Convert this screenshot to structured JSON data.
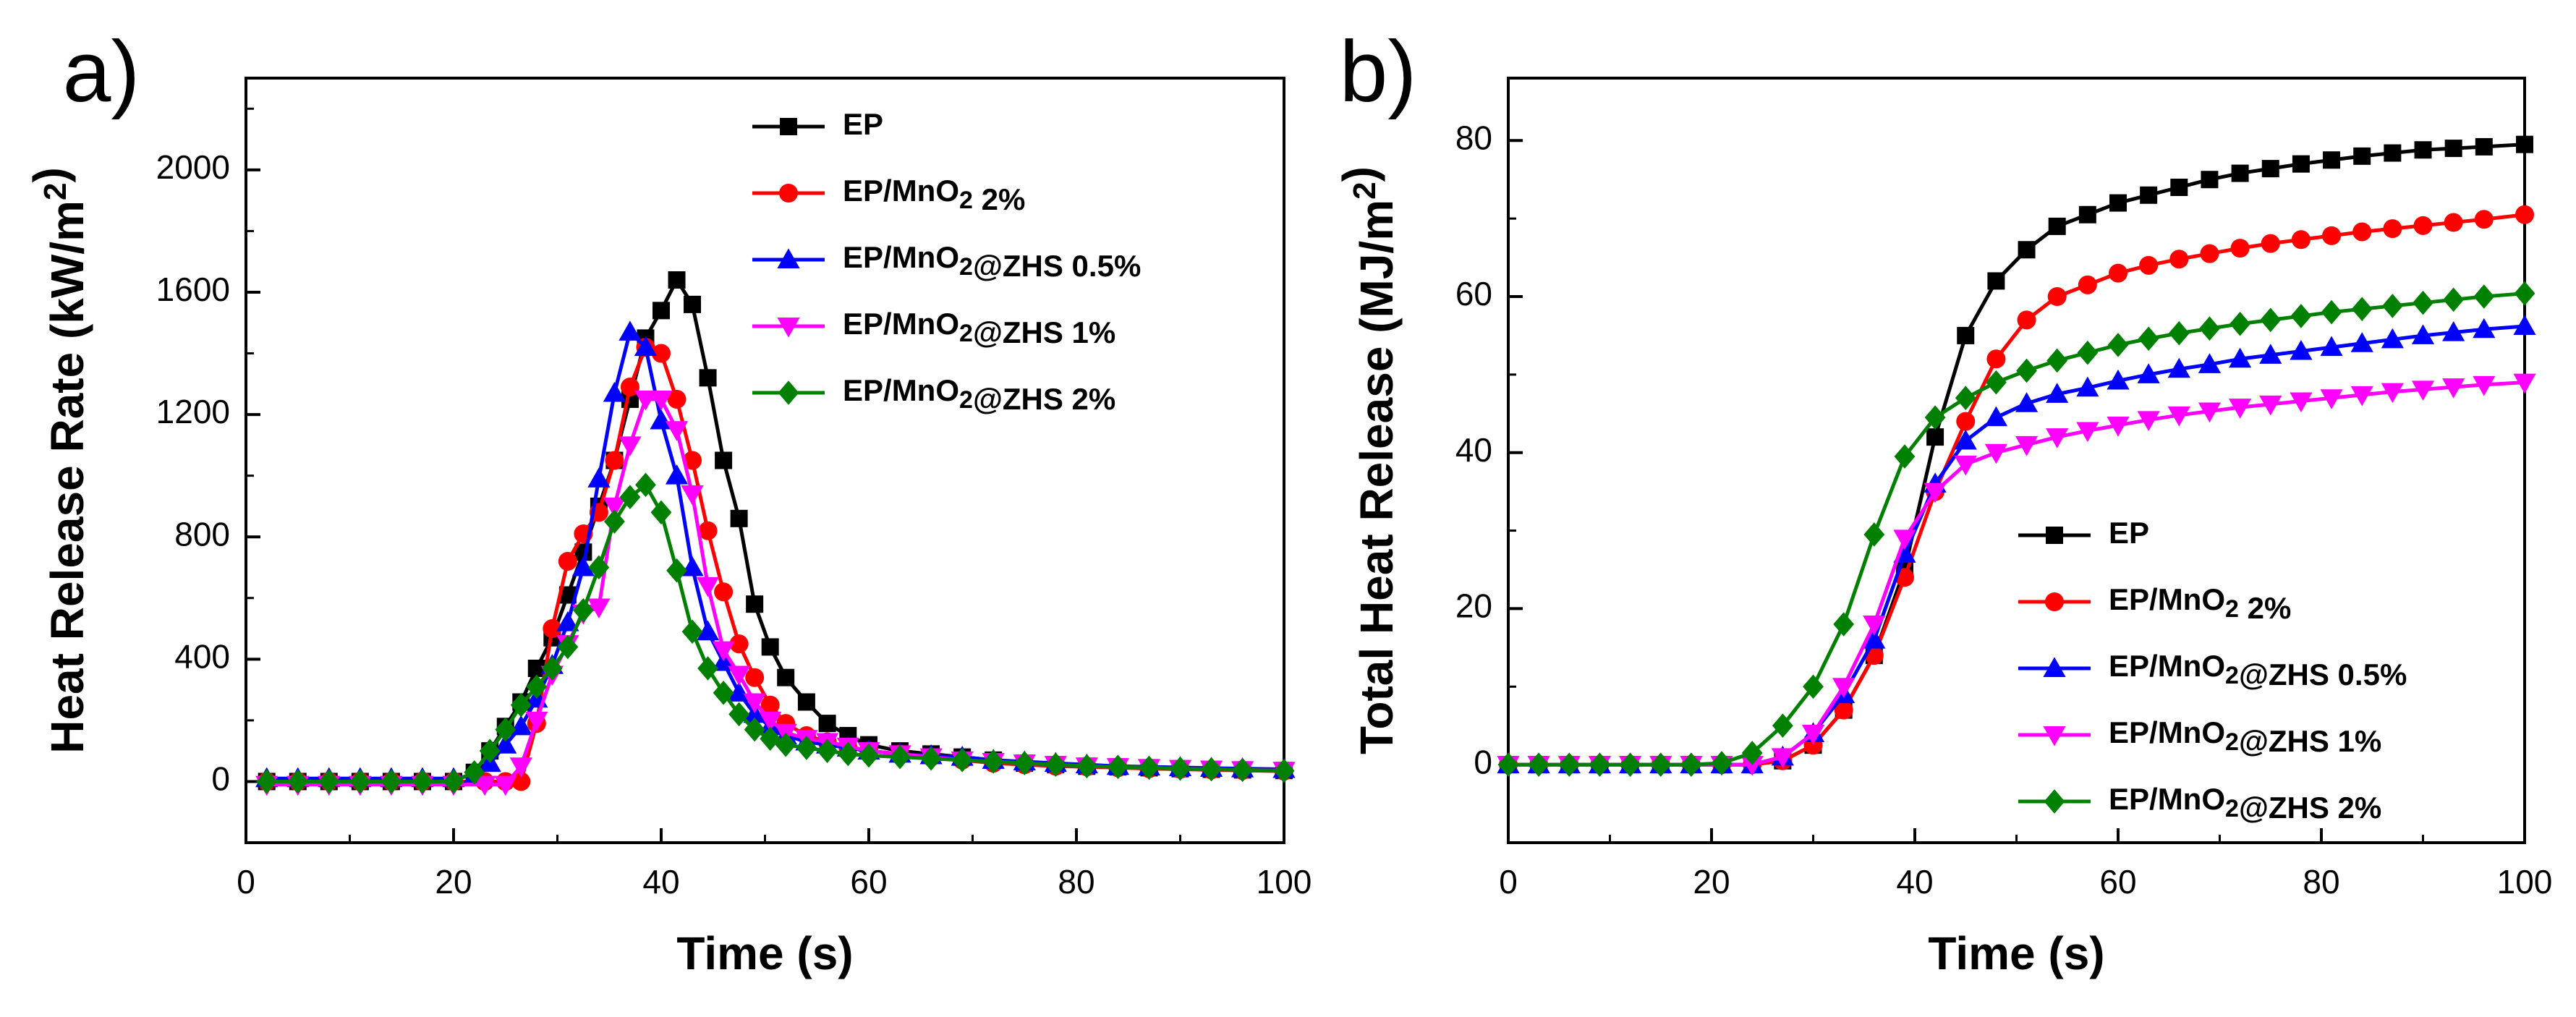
{
  "chart_data": [
    {
      "type": "line",
      "panel_label": "a)",
      "xlabel": "Time (s)",
      "ylabel": "Heat Release Rate (kW/m²)",
      "xlim": [
        0,
        100
      ],
      "ylim": [
        -200,
        2300
      ],
      "xticks": [
        0,
        20,
        40,
        60,
        80,
        100
      ],
      "yticks": [
        0,
        400,
        800,
        1200,
        1600,
        2000
      ],
      "legend_position": "top-right",
      "series": [
        {
          "name": "EP",
          "color": "#000000",
          "marker": "square",
          "x": [
            2,
            5,
            8,
            11,
            14,
            17,
            20,
            22,
            23.5,
            25,
            26.5,
            28,
            29.5,
            31,
            32.5,
            34,
            35.5,
            37,
            38.5,
            40,
            41.5,
            43,
            44.5,
            46,
            47.5,
            49,
            50.5,
            52,
            54,
            56,
            58,
            60,
            63,
            66,
            69,
            72,
            75,
            78,
            81,
            84,
            87,
            90,
            93,
            96,
            100
          ],
          "y": [
            0,
            0,
            0,
            0,
            0,
            0,
            0,
            30,
            100,
            180,
            260,
            370,
            470,
            610,
            750,
            900,
            1050,
            1250,
            1450,
            1540,
            1640,
            1560,
            1320,
            1050,
            860,
            580,
            440,
            340,
            260,
            190,
            150,
            120,
            100,
            90,
            80,
            70,
            60,
            55,
            50,
            48,
            45,
            42,
            40,
            38,
            36
          ]
        },
        {
          "name": "EP/MnO₂ 2%",
          "color": "#ff0000",
          "marker": "circle",
          "x": [
            2,
            5,
            8,
            11,
            14,
            17,
            20,
            23,
            25,
            26.5,
            28,
            29.5,
            31,
            32.5,
            34,
            35.5,
            37,
            38.5,
            40,
            41.5,
            43,
            44.5,
            46,
            47.5,
            49,
            50.5,
            52,
            54,
            56,
            58,
            60,
            63,
            66,
            69,
            72,
            75,
            78,
            81,
            84,
            87,
            90,
            93,
            96,
            100
          ],
          "y": [
            0,
            0,
            0,
            0,
            0,
            0,
            0,
            0,
            0,
            0,
            190,
            500,
            720,
            810,
            880,
            1050,
            1290,
            1420,
            1400,
            1250,
            1050,
            820,
            620,
            450,
            340,
            250,
            190,
            150,
            130,
            110,
            100,
            90,
            80,
            70,
            60,
            55,
            50,
            48,
            45,
            42,
            40,
            38,
            36,
            34
          ]
        },
        {
          "name": "EP/MnO₂@ZHS 0.5%",
          "color": "#0000ff",
          "marker": "triangle-up",
          "x": [
            2,
            5,
            8,
            11,
            14,
            17,
            20,
            22,
            23.5,
            25,
            26.5,
            28,
            29.5,
            31,
            32.5,
            34,
            35.5,
            37,
            38.5,
            40,
            41.5,
            43,
            44.5,
            46,
            47.5,
            49,
            50.5,
            52,
            54,
            56,
            58,
            60,
            63,
            66,
            69,
            72,
            75,
            78,
            81,
            84,
            87,
            90,
            93,
            96,
            100
          ],
          "y": [
            10,
            10,
            10,
            10,
            10,
            10,
            10,
            20,
            60,
            120,
            180,
            270,
            380,
            520,
            700,
            990,
            1270,
            1470,
            1420,
            1180,
            1000,
            700,
            490,
            390,
            290,
            220,
            180,
            150,
            130,
            120,
            110,
            100,
            90,
            85,
            80,
            70,
            65,
            60,
            55,
            50,
            48,
            46,
            44,
            42,
            40
          ]
        },
        {
          "name": "EP/MnO₂@ZHS 1%",
          "color": "#ff00ff",
          "marker": "triangle-down",
          "x": [
            2,
            5,
            8,
            11,
            14,
            17,
            20,
            23,
            25,
            26.5,
            28,
            29.5,
            31,
            32.5,
            34,
            35.5,
            37,
            38.5,
            40,
            41.5,
            43,
            44.5,
            46,
            47.5,
            49,
            50.5,
            52,
            54,
            56,
            58,
            60,
            63,
            66,
            69,
            72,
            75,
            78,
            81,
            84,
            87,
            90,
            93,
            96,
            100
          ],
          "y": [
            -10,
            -10,
            -10,
            -10,
            -10,
            -10,
            -10,
            -10,
            -10,
            50,
            200,
            350,
            450,
            550,
            570,
            900,
            1100,
            1250,
            1250,
            1150,
            940,
            640,
            430,
            350,
            260,
            200,
            160,
            140,
            130,
            115,
            100,
            90,
            80,
            70,
            65,
            60,
            55,
            50,
            48,
            45,
            42,
            40,
            38,
            36
          ]
        },
        {
          "name": "EP/MnO₂@ZHS 2%",
          "color": "#008000",
          "marker": "diamond",
          "x": [
            2,
            5,
            8,
            11,
            14,
            17,
            20,
            22,
            23.5,
            25,
            26.5,
            28,
            29.5,
            31,
            32.5,
            34,
            35.5,
            37,
            38.5,
            40,
            41.5,
            43,
            44.5,
            46,
            47.5,
            49,
            50.5,
            52,
            54,
            56,
            58,
            60,
            63,
            66,
            69,
            72,
            75,
            78,
            81,
            84,
            87,
            90,
            93,
            96,
            100
          ],
          "y": [
            0,
            0,
            0,
            0,
            0,
            0,
            0,
            30,
            100,
            170,
            250,
            310,
            370,
            440,
            560,
            700,
            850,
            930,
            970,
            880,
            690,
            490,
            370,
            290,
            220,
            170,
            140,
            120,
            110,
            100,
            90,
            85,
            80,
            75,
            70,
            65,
            60,
            55,
            50,
            48,
            45,
            42,
            40,
            38,
            35
          ]
        }
      ]
    },
    {
      "type": "line",
      "panel_label": "b)",
      "xlabel": "Time (s)",
      "ylabel": "Total Heat Release (MJ/m²)",
      "xlim": [
        0,
        100
      ],
      "ylim": [
        -10,
        88
      ],
      "xticks": [
        0,
        20,
        40,
        60,
        80,
        100
      ],
      "yticks": [
        0,
        20,
        40,
        60,
        80
      ],
      "legend_position": "bottom-right",
      "series": [
        {
          "name": "EP",
          "color": "#000000",
          "marker": "square",
          "x": [
            0,
            3,
            6,
            9,
            12,
            15,
            18,
            21,
            24,
            27,
            30,
            33,
            36,
            39,
            42,
            45,
            48,
            51,
            54,
            57,
            60,
            63,
            66,
            69,
            72,
            75,
            78,
            81,
            84,
            87,
            90,
            93,
            96,
            100
          ],
          "y": [
            0,
            0,
            0,
            0,
            0,
            0,
            0,
            0,
            0,
            0.5,
            2.5,
            7,
            14,
            25,
            42,
            55,
            62,
            66,
            69,
            70.5,
            72,
            73,
            74,
            75,
            75.8,
            76.4,
            77,
            77.5,
            78,
            78.4,
            78.8,
            79,
            79.2,
            79.5
          ]
        },
        {
          "name": "EP/MnO₂ 2%",
          "color": "#ff0000",
          "marker": "circle",
          "x": [
            0,
            3,
            6,
            9,
            12,
            15,
            18,
            21,
            24,
            27,
            30,
            33,
            36,
            39,
            42,
            45,
            48,
            51,
            54,
            57,
            60,
            63,
            66,
            69,
            72,
            75,
            78,
            81,
            84,
            87,
            90,
            93,
            96,
            100
          ],
          "y": [
            0,
            0,
            0,
            0,
            0,
            0,
            0,
            0,
            0,
            0.5,
            2.5,
            7,
            14,
            24,
            35,
            44,
            52,
            57,
            60,
            61.5,
            63,
            64,
            64.8,
            65.5,
            66.2,
            66.8,
            67.3,
            67.8,
            68.3,
            68.7,
            69.1,
            69.5,
            69.9,
            70.5
          ]
        },
        {
          "name": "EP/MnO₂@ZHS 0.5%",
          "color": "#0000ff",
          "marker": "triangle-up",
          "x": [
            0,
            3,
            6,
            9,
            12,
            15,
            18,
            21,
            24,
            27,
            30,
            33,
            36,
            39,
            42,
            45,
            48,
            51,
            54,
            57,
            60,
            63,
            66,
            69,
            72,
            75,
            78,
            81,
            84,
            87,
            90,
            93,
            96,
            100
          ],
          "y": [
            0,
            0,
            0,
            0,
            0,
            0,
            0,
            0,
            0,
            1,
            4,
            9,
            16,
            27,
            36,
            41.5,
            44.5,
            46.3,
            47.5,
            48.3,
            49.2,
            50,
            50.7,
            51.3,
            52,
            52.5,
            53,
            53.5,
            54,
            54.5,
            55,
            55.4,
            55.8,
            56.2
          ]
        },
        {
          "name": "EP/MnO₂@ZHS 1%",
          "color": "#ff00ff",
          "marker": "triangle-down",
          "x": [
            0,
            3,
            6,
            9,
            12,
            15,
            18,
            21,
            24,
            27,
            30,
            33,
            36,
            39,
            42,
            45,
            48,
            51,
            54,
            57,
            60,
            63,
            66,
            69,
            72,
            75,
            78,
            81,
            84,
            87,
            90,
            93,
            96,
            100
          ],
          "y": [
            0,
            0,
            0,
            0,
            0,
            0,
            0,
            0,
            0,
            1,
            4,
            10,
            18,
            29,
            35,
            38.5,
            40,
            41,
            42,
            42.8,
            43.5,
            44.2,
            44.8,
            45.3,
            45.8,
            46.2,
            46.6,
            47,
            47.4,
            47.8,
            48.1,
            48.4,
            48.7,
            49
          ]
        },
        {
          "name": "EP/MnO₂@ZHS 2%",
          "color": "#008000",
          "marker": "diamond",
          "x": [
            0,
            3,
            6,
            9,
            12,
            15,
            18,
            21,
            24,
            27,
            30,
            33,
            36,
            39,
            42,
            45,
            48,
            51,
            54,
            57,
            60,
            63,
            66,
            69,
            72,
            75,
            78,
            81,
            84,
            87,
            90,
            93,
            96,
            100
          ],
          "y": [
            0,
            0,
            0,
            0,
            0,
            0,
            0,
            0.2,
            1.5,
            5,
            10,
            18,
            29.5,
            39.5,
            44.5,
            47,
            49,
            50.5,
            51.8,
            52.8,
            53.8,
            54.6,
            55.3,
            55.9,
            56.5,
            57,
            57.5,
            58,
            58.4,
            58.8,
            59.2,
            59.6,
            60,
            60.4
          ]
        }
      ]
    }
  ]
}
